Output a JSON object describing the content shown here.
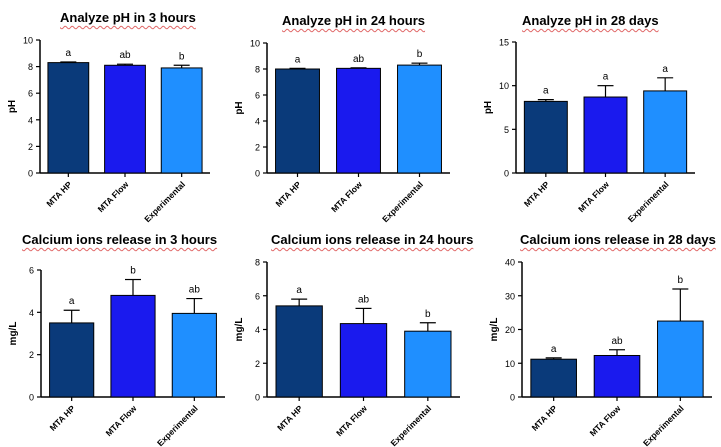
{
  "colors": {
    "mta_hp": "#0a3a7a",
    "mta_flow": "#1a1aee",
    "experimental": "#1f8fff"
  },
  "chart_data": [
    {
      "type": "bar",
      "title": "Analyze pH in 3 hours",
      "ylabel": "pH",
      "ylim": [
        0,
        10
      ],
      "yticks": [
        "0",
        "2",
        "4",
        "6",
        "8",
        "10"
      ],
      "categories": [
        "MTA HP",
        "MTA Flow",
        "Experimental"
      ],
      "values": [
        8.3,
        8.1,
        7.9
      ],
      "errors": [
        0.05,
        0.08,
        0.2
      ],
      "letters": [
        "a",
        "ab",
        "b"
      ]
    },
    {
      "type": "bar",
      "title": "Analyze pH in 24 hours",
      "ylabel": "pH",
      "ylim": [
        0,
        10
      ],
      "yticks": [
        "0",
        "2",
        "4",
        "6",
        "8",
        "10"
      ],
      "categories": [
        "MTA HP",
        "MTA Flow",
        "Experimental"
      ],
      "values": [
        8.0,
        8.05,
        8.3
      ],
      "errors": [
        0.05,
        0.04,
        0.15
      ],
      "letters": [
        "a",
        "ab",
        "b"
      ]
    },
    {
      "type": "bar",
      "title": "Analyze pH in 28 days",
      "ylabel": "pH",
      "ylim": [
        0,
        15
      ],
      "yticks": [
        "0",
        "5",
        "10",
        "15"
      ],
      "categories": [
        "MTA HP",
        "MTA Flow",
        "Experimental"
      ],
      "values": [
        8.2,
        8.7,
        9.4
      ],
      "errors": [
        0.2,
        1.3,
        1.5
      ],
      "letters": [
        "a",
        "a",
        "a"
      ]
    },
    {
      "type": "bar",
      "title": "Calcium ions release in 3 hours",
      "ylabel": "mg/L",
      "ylim": [
        0,
        6
      ],
      "yticks": [
        "0",
        "2",
        "4",
        "6"
      ],
      "categories": [
        "MTA HP",
        "MTA Flow",
        "Experimental"
      ],
      "values": [
        3.5,
        4.8,
        3.95
      ],
      "errors": [
        0.6,
        0.75,
        0.7
      ],
      "letters": [
        "a",
        "b",
        "ab"
      ]
    },
    {
      "type": "bar",
      "title": "Calcium ions release in 24 hours",
      "ylabel": "mg/L",
      "ylim": [
        0,
        8
      ],
      "yticks": [
        "0",
        "2",
        "4",
        "6",
        "8"
      ],
      "categories": [
        "MTA HP",
        "MTA Flow",
        "Experimental"
      ],
      "values": [
        5.4,
        4.35,
        3.9
      ],
      "errors": [
        0.4,
        0.9,
        0.5
      ],
      "letters": [
        "a",
        "ab",
        "b"
      ]
    },
    {
      "type": "bar",
      "title": "Calcium ions release in 28 days",
      "ylabel": "mg/L",
      "ylim": [
        0,
        40
      ],
      "yticks": [
        "0",
        "10",
        "20",
        "30",
        "40"
      ],
      "categories": [
        "MTA HP",
        "MTA Flow",
        "Experimental"
      ],
      "values": [
        11.2,
        12.3,
        22.5
      ],
      "errors": [
        0.4,
        1.7,
        9.5
      ],
      "letters": [
        "a",
        "ab",
        "b"
      ]
    }
  ]
}
